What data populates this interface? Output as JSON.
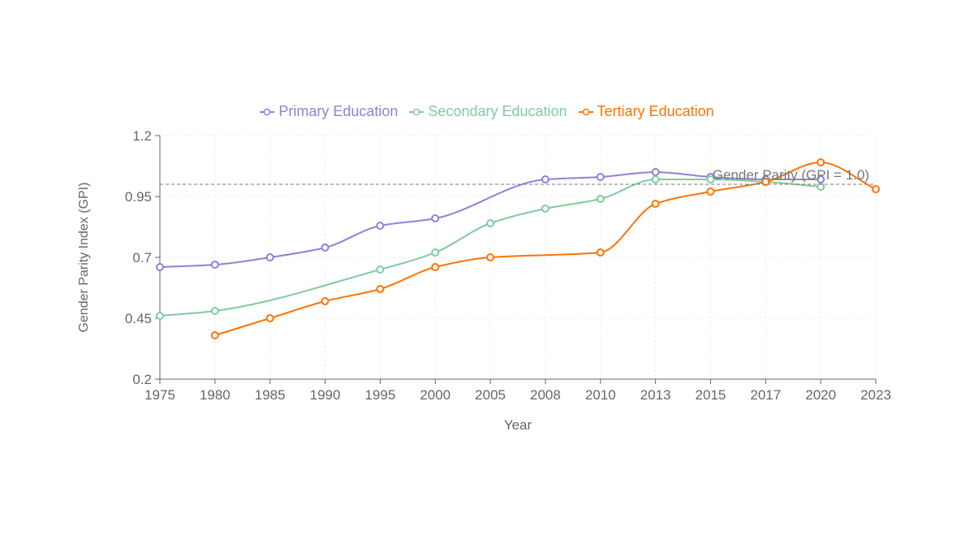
{
  "chart_data": {
    "type": "line",
    "xlabel": "Year",
    "ylabel": "Gender Parity Index (GPI)",
    "categories": [
      "1975",
      "1980",
      "1985",
      "1990",
      "1995",
      "2000",
      "2005",
      "2008",
      "2010",
      "2013",
      "2015",
      "2017",
      "2020",
      "2023"
    ],
    "ylim": [
      0.2,
      1.2
    ],
    "yticks": [
      "0.2",
      "0.45",
      "0.7",
      "0.95",
      "1.2"
    ],
    "grid": true,
    "legend_position": "top",
    "reference_line": {
      "y": 1.0,
      "label": "Gender Parity (GPI = 1.0)",
      "style": "dashed"
    },
    "series": [
      {
        "name": "Primary Education",
        "color": "#8884d8",
        "values": [
          0.66,
          0.67,
          0.7,
          0.74,
          0.83,
          0.86,
          null,
          1.02,
          1.03,
          1.05,
          1.03,
          1.02,
          1.02,
          null
        ]
      },
      {
        "name": "Secondary Education",
        "color": "#82ca9d",
        "values": [
          0.46,
          0.48,
          null,
          null,
          0.65,
          0.72,
          0.84,
          0.9,
          0.94,
          1.02,
          1.02,
          1.01,
          0.99,
          null
        ]
      },
      {
        "name": "Tertiary Education",
        "color": "#ff7300",
        "values": [
          null,
          0.38,
          0.45,
          0.52,
          0.57,
          0.66,
          0.7,
          null,
          0.72,
          0.92,
          0.97,
          1.01,
          1.09,
          0.98
        ]
      }
    ]
  }
}
